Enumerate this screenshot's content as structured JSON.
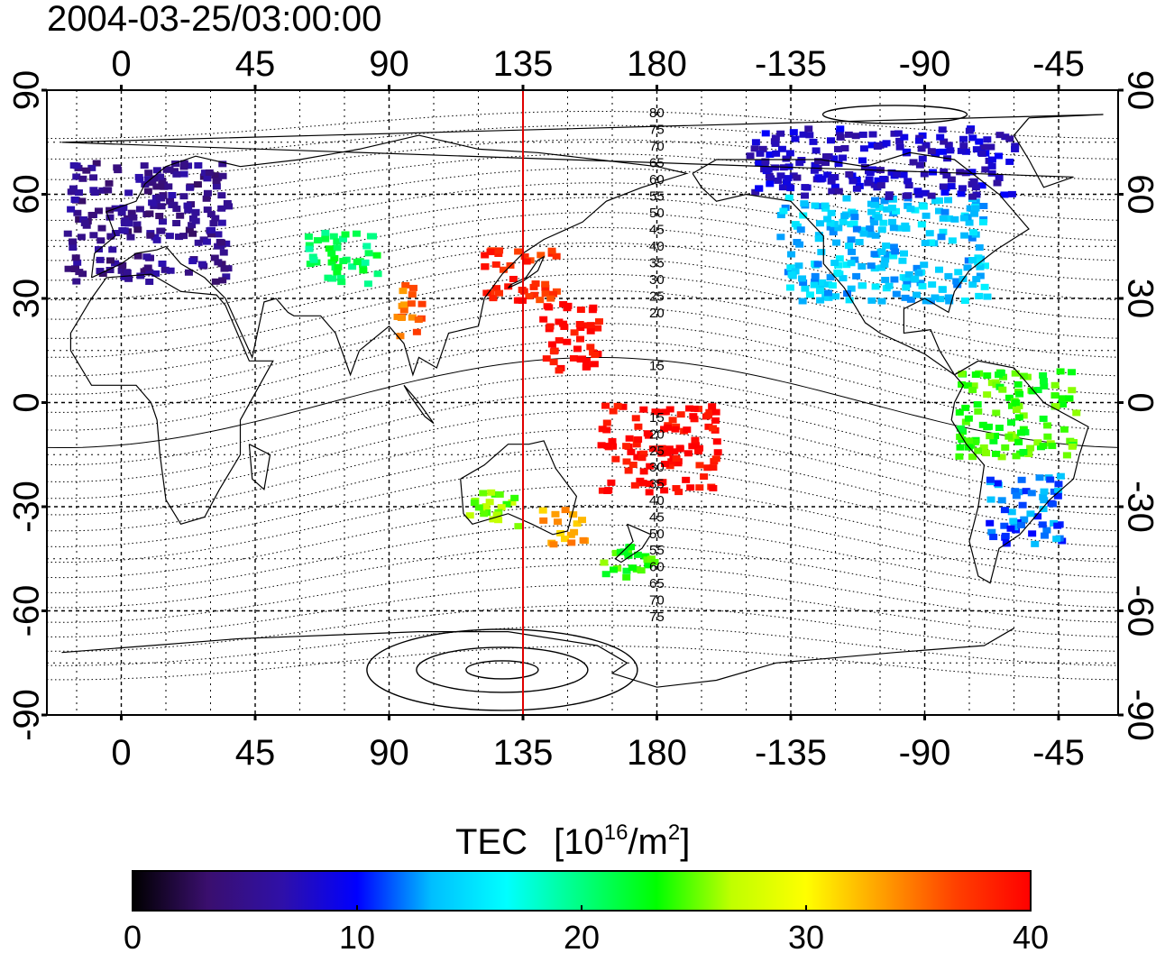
{
  "title": "2004-03-25/03:00:00",
  "map": {
    "x_ticks_top": [
      "0",
      "45",
      "90",
      "135",
      "180",
      "-135",
      "-90",
      "-45"
    ],
    "x_ticks_bottom": [
      "0",
      "45",
      "90",
      "135",
      "180",
      "-135",
      "-90",
      "-45"
    ],
    "y_ticks_left": [
      "90",
      "60",
      "30",
      "0",
      "-30",
      "-60",
      "-90"
    ],
    "y_ticks_right": [
      "90",
      "60",
      "30",
      "0",
      "-30",
      "-60",
      "-90"
    ],
    "meridian_line_lon": 135,
    "meridian_line_color": "#e00000",
    "contour_labels_north": [
      "80",
      "75",
      "70",
      "65",
      "60",
      "55",
      "50",
      "45",
      "40",
      "35",
      "30",
      "25",
      "20",
      "15"
    ],
    "contour_labels_south": [
      "15",
      "20",
      "25",
      "30",
      "35",
      "40",
      "45",
      "50",
      "55",
      "60",
      "65",
      "70",
      "75"
    ]
  },
  "colorbar": {
    "label_prefix": "TEC",
    "label_unit": "[10",
    "label_exp": "16",
    "label_mid": "/m",
    "label_exp2": "2",
    "label_end": "]",
    "min": 0,
    "max": 40,
    "ticks": [
      "0",
      "10",
      "20",
      "30",
      "40"
    ],
    "stops": [
      "#000000",
      "#3a0f6e",
      "#2f10a8",
      "#0000ff",
      "#00bfff",
      "#00ffff",
      "#00ff80",
      "#00ff00",
      "#bfff00",
      "#ffff00",
      "#ffa000",
      "#ff4000",
      "#ff0000"
    ]
  },
  "chart_data": {
    "type": "heatmap",
    "title": "2004-03-25/03:00:00",
    "colorbar_range": [
      0,
      40
    ],
    "lon_range": [
      -25,
      335
    ],
    "lat_range": [
      -90,
      90
    ],
    "regions": [
      {
        "lon": [
          -20,
          35
        ],
        "lat": [
          35,
          70
        ],
        "value": 5
      },
      {
        "lon": [
          60,
          85
        ],
        "lat": [
          35,
          50
        ],
        "value": 21
      },
      {
        "lon": [
          90,
          100
        ],
        "lat": [
          20,
          35
        ],
        "value": 35
      },
      {
        "lon": [
          120,
          145
        ],
        "lat": [
          30,
          45
        ],
        "value": 38
      },
      {
        "lon": [
          140,
          160
        ],
        "lat": [
          10,
          30
        ],
        "value": 40
      },
      {
        "lon": [
          160,
          200
        ],
        "lat": [
          -25,
          0
        ],
        "value": 40
      },
      {
        "lon": [
          115,
          135
        ],
        "lat": [
          -35,
          -25
        ],
        "value": 26
      },
      {
        "lon": [
          140,
          155
        ],
        "lat": [
          -40,
          -30
        ],
        "value": 33
      },
      {
        "lon": [
          160,
          180
        ],
        "lat": [
          -50,
          -40
        ],
        "value": 24
      },
      {
        "lon": [
          -140,
          -70
        ],
        "lat": [
          30,
          60
        ],
        "value": 14
      },
      {
        "lon": [
          -70,
          -45
        ],
        "lat": [
          -40,
          -20
        ],
        "value": 12
      },
      {
        "lon": [
          -80,
          -40
        ],
        "lat": [
          -15,
          10
        ],
        "value": 24
      },
      {
        "lon": [
          -150,
          -60
        ],
        "lat": [
          60,
          80
        ],
        "value": 8
      }
    ]
  }
}
